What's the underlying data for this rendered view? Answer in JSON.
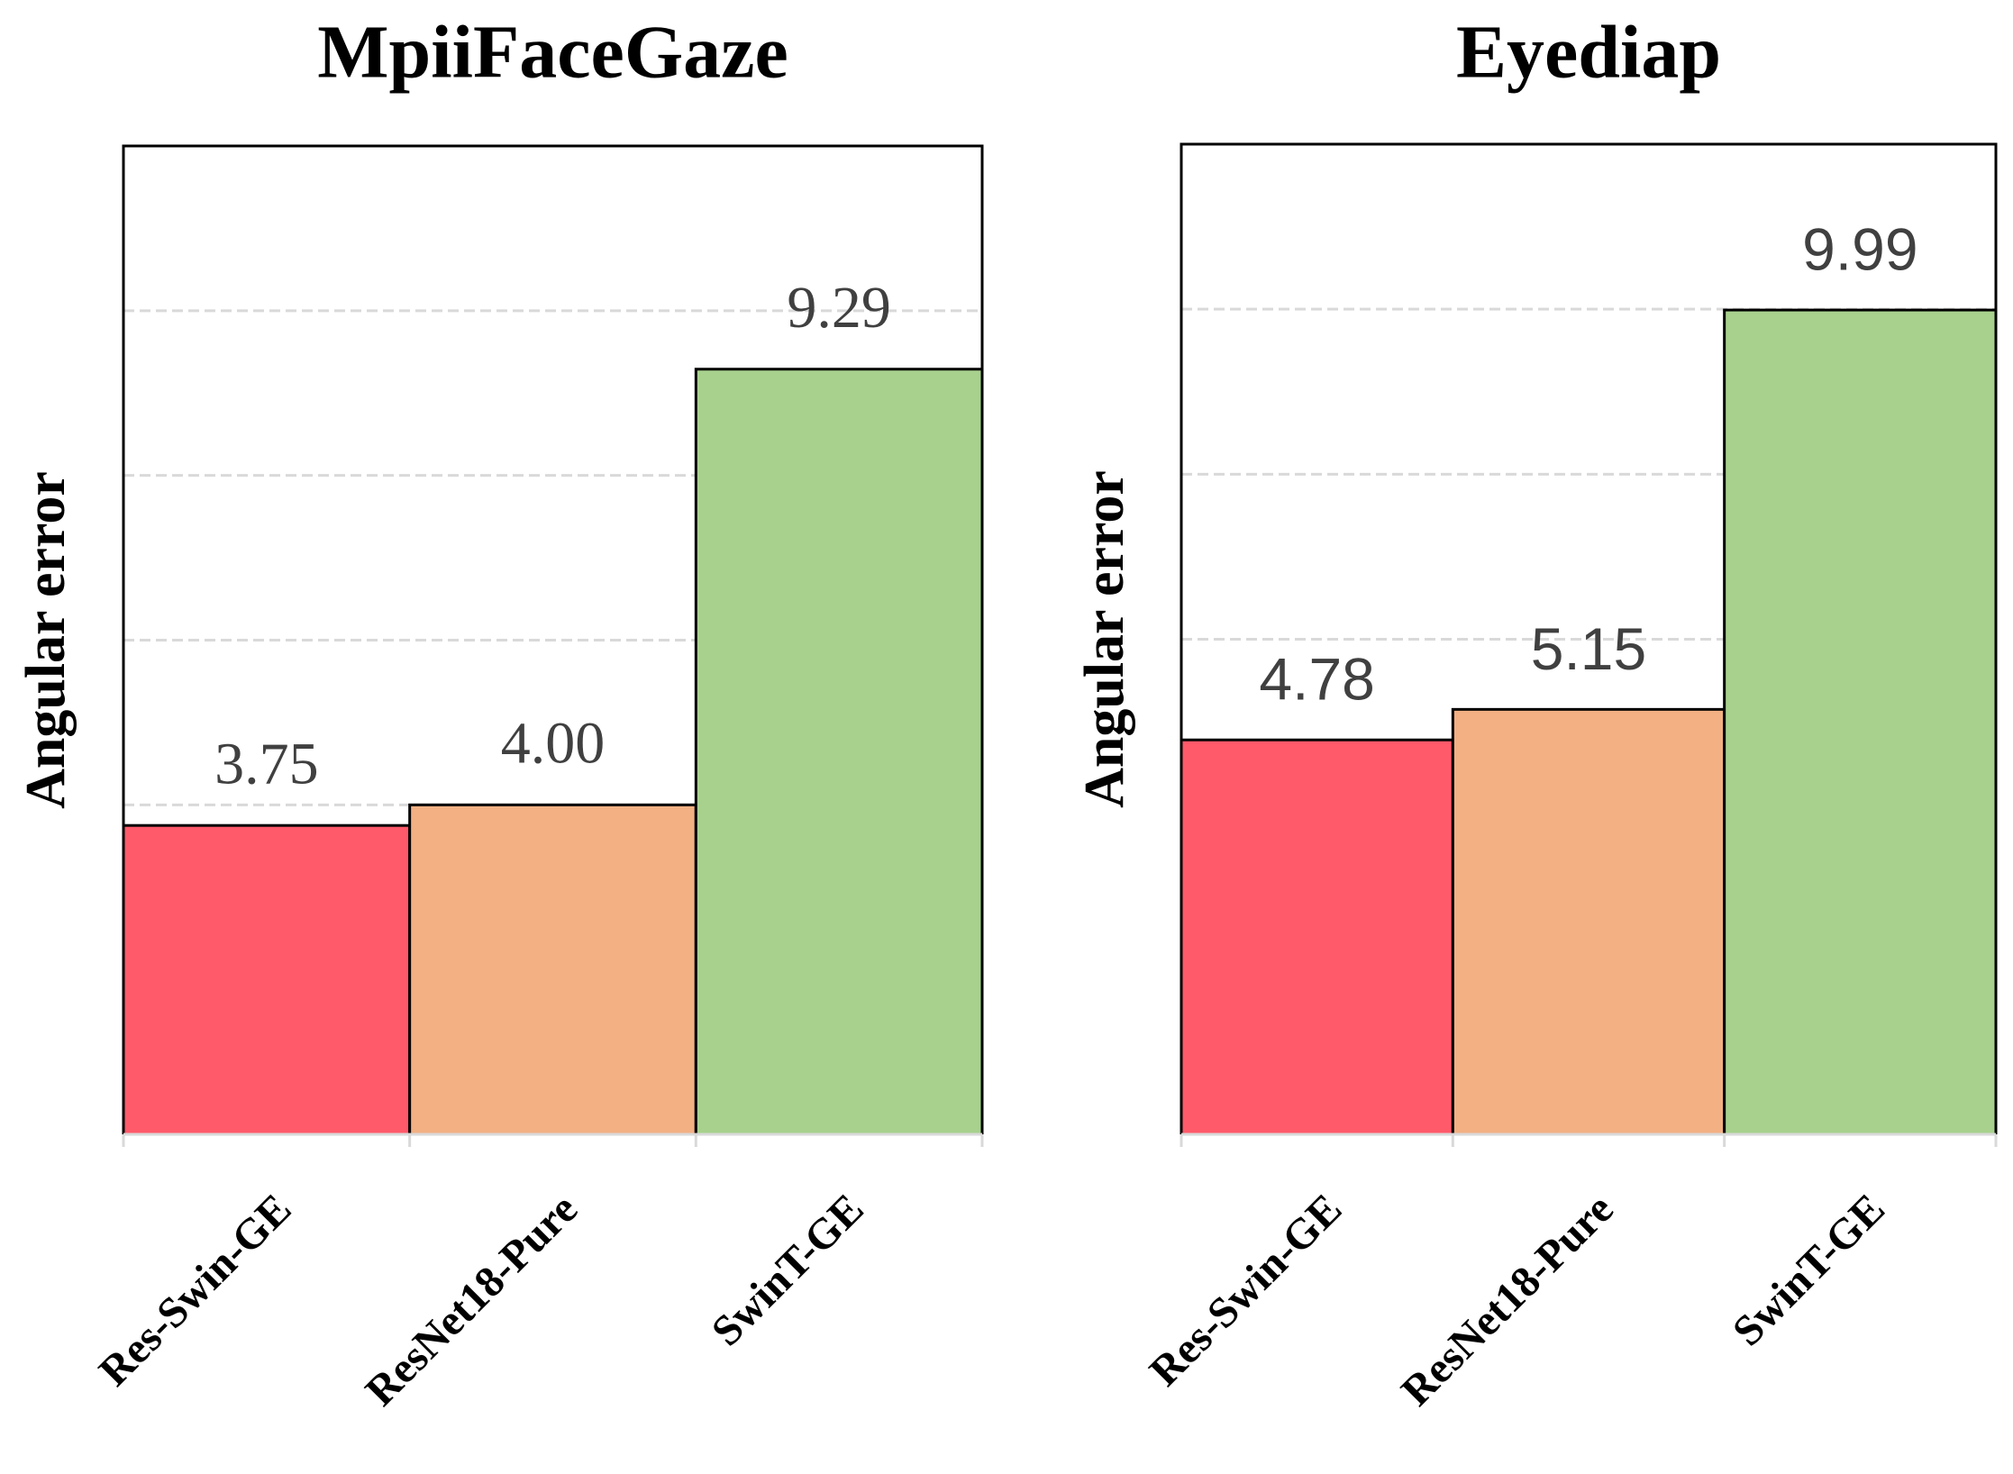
{
  "chart_data": [
    {
      "type": "bar",
      "title": "MpiiFaceGaze",
      "ylabel": "Angular error",
      "categories": [
        "Res-Swin-GE",
        "ResNet18-Pure",
        "SwinT-GE"
      ],
      "values": [
        3.75,
        4.0,
        9.29
      ],
      "value_labels": [
        "3.75",
        "4.00",
        "9.29"
      ],
      "colors": [
        "#ff5a6a",
        "#f2b083",
        "#a8d18d"
      ],
      "ylim": [
        0,
        12
      ],
      "yticks": [
        2,
        4,
        6,
        8,
        10
      ],
      "grid": true
    },
    {
      "type": "bar",
      "title": "Eyediap",
      "ylabel": "Angular error",
      "categories": [
        "Res-Swin-GE",
        "ResNet18-Pure",
        "SwinT-GE"
      ],
      "values": [
        4.78,
        5.15,
        9.99
      ],
      "value_labels": [
        "4.78",
        "5.15",
        "9.99"
      ],
      "colors": [
        "#ff5a6a",
        "#f2b083",
        "#a8d18d"
      ],
      "ylim": [
        0,
        12
      ],
      "yticks": [
        2,
        4,
        6,
        8,
        10
      ],
      "grid": true
    }
  ]
}
